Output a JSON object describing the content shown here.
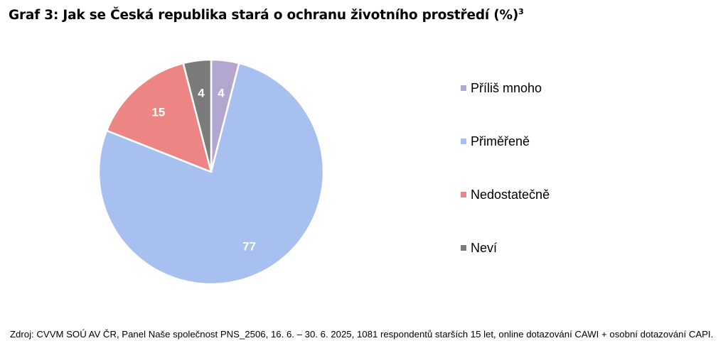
{
  "title": "Graf 3: Jak se Česká republika stará o ochranu životního prostředí (%)",
  "title_superscript": "3",
  "chart_data": {
    "type": "pie",
    "categories": [
      "Příliš mnoho",
      "Přiměřeně",
      "Nedostatečně",
      "Neví"
    ],
    "values": [
      4,
      77,
      15,
      4
    ],
    "colors": [
      "#b4a7cf",
      "#a7c0f0",
      "#ee8585",
      "#7b7b7b"
    ],
    "data_labels": [
      "4",
      "77",
      "15",
      "4"
    ],
    "legend_position": "right"
  },
  "source": "Zdroj: CVVM SOÚ AV ČR, Panel Naše společnost PNS_2506, 16. 6. – 30. 6. 2025, 1081 respondentů starších 15 let, online dotazování CAWI + osobní dotazování CAPI."
}
